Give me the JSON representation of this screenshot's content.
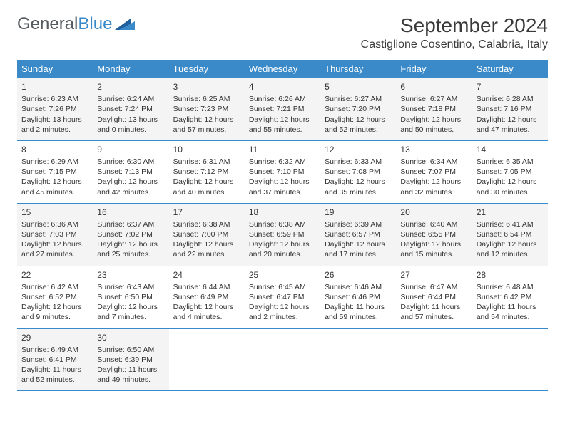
{
  "logo": {
    "word1": "General",
    "word2": "Blue"
  },
  "title": "September 2024",
  "location": "Castiglione Cosentino, Calabria, Italy",
  "colors": {
    "header_bg": "#3a8ac9",
    "header_text": "#ffffff",
    "border": "#3a8ac9",
    "shade_bg": "#f4f4f4",
    "body_text": "#333333",
    "title_text": "#3a3a3a",
    "logo_gray": "#555a60",
    "logo_blue": "#3a8ac9"
  },
  "fonts": {
    "title_size": 28,
    "location_size": 16,
    "header_size": 13,
    "cell_size": 10.5,
    "daynum_size": 12,
    "logo_size": 24
  },
  "day_names": [
    "Sunday",
    "Monday",
    "Tuesday",
    "Wednesday",
    "Thursday",
    "Friday",
    "Saturday"
  ],
  "weeks": [
    [
      {
        "n": "1",
        "sr": "Sunrise: 6:23 AM",
        "ss": "Sunset: 7:26 PM",
        "dl": "Daylight: 13 hours and 2 minutes.",
        "shade": true
      },
      {
        "n": "2",
        "sr": "Sunrise: 6:24 AM",
        "ss": "Sunset: 7:24 PM",
        "dl": "Daylight: 13 hours and 0 minutes.",
        "shade": true
      },
      {
        "n": "3",
        "sr": "Sunrise: 6:25 AM",
        "ss": "Sunset: 7:23 PM",
        "dl": "Daylight: 12 hours and 57 minutes.",
        "shade": true
      },
      {
        "n": "4",
        "sr": "Sunrise: 6:26 AM",
        "ss": "Sunset: 7:21 PM",
        "dl": "Daylight: 12 hours and 55 minutes.",
        "shade": true
      },
      {
        "n": "5",
        "sr": "Sunrise: 6:27 AM",
        "ss": "Sunset: 7:20 PM",
        "dl": "Daylight: 12 hours and 52 minutes.",
        "shade": true
      },
      {
        "n": "6",
        "sr": "Sunrise: 6:27 AM",
        "ss": "Sunset: 7:18 PM",
        "dl": "Daylight: 12 hours and 50 minutes.",
        "shade": true
      },
      {
        "n": "7",
        "sr": "Sunrise: 6:28 AM",
        "ss": "Sunset: 7:16 PM",
        "dl": "Daylight: 12 hours and 47 minutes.",
        "shade": true
      }
    ],
    [
      {
        "n": "8",
        "sr": "Sunrise: 6:29 AM",
        "ss": "Sunset: 7:15 PM",
        "dl": "Daylight: 12 hours and 45 minutes.",
        "shade": false
      },
      {
        "n": "9",
        "sr": "Sunrise: 6:30 AM",
        "ss": "Sunset: 7:13 PM",
        "dl": "Daylight: 12 hours and 42 minutes.",
        "shade": false
      },
      {
        "n": "10",
        "sr": "Sunrise: 6:31 AM",
        "ss": "Sunset: 7:12 PM",
        "dl": "Daylight: 12 hours and 40 minutes.",
        "shade": false
      },
      {
        "n": "11",
        "sr": "Sunrise: 6:32 AM",
        "ss": "Sunset: 7:10 PM",
        "dl": "Daylight: 12 hours and 37 minutes.",
        "shade": false
      },
      {
        "n": "12",
        "sr": "Sunrise: 6:33 AM",
        "ss": "Sunset: 7:08 PM",
        "dl": "Daylight: 12 hours and 35 minutes.",
        "shade": false
      },
      {
        "n": "13",
        "sr": "Sunrise: 6:34 AM",
        "ss": "Sunset: 7:07 PM",
        "dl": "Daylight: 12 hours and 32 minutes.",
        "shade": false
      },
      {
        "n": "14",
        "sr": "Sunrise: 6:35 AM",
        "ss": "Sunset: 7:05 PM",
        "dl": "Daylight: 12 hours and 30 minutes.",
        "shade": false
      }
    ],
    [
      {
        "n": "15",
        "sr": "Sunrise: 6:36 AM",
        "ss": "Sunset: 7:03 PM",
        "dl": "Daylight: 12 hours and 27 minutes.",
        "shade": true
      },
      {
        "n": "16",
        "sr": "Sunrise: 6:37 AM",
        "ss": "Sunset: 7:02 PM",
        "dl": "Daylight: 12 hours and 25 minutes.",
        "shade": true
      },
      {
        "n": "17",
        "sr": "Sunrise: 6:38 AM",
        "ss": "Sunset: 7:00 PM",
        "dl": "Daylight: 12 hours and 22 minutes.",
        "shade": true
      },
      {
        "n": "18",
        "sr": "Sunrise: 6:38 AM",
        "ss": "Sunset: 6:59 PM",
        "dl": "Daylight: 12 hours and 20 minutes.",
        "shade": true
      },
      {
        "n": "19",
        "sr": "Sunrise: 6:39 AM",
        "ss": "Sunset: 6:57 PM",
        "dl": "Daylight: 12 hours and 17 minutes.",
        "shade": true
      },
      {
        "n": "20",
        "sr": "Sunrise: 6:40 AM",
        "ss": "Sunset: 6:55 PM",
        "dl": "Daylight: 12 hours and 15 minutes.",
        "shade": true
      },
      {
        "n": "21",
        "sr": "Sunrise: 6:41 AM",
        "ss": "Sunset: 6:54 PM",
        "dl": "Daylight: 12 hours and 12 minutes.",
        "shade": true
      }
    ],
    [
      {
        "n": "22",
        "sr": "Sunrise: 6:42 AM",
        "ss": "Sunset: 6:52 PM",
        "dl": "Daylight: 12 hours and 9 minutes.",
        "shade": false
      },
      {
        "n": "23",
        "sr": "Sunrise: 6:43 AM",
        "ss": "Sunset: 6:50 PM",
        "dl": "Daylight: 12 hours and 7 minutes.",
        "shade": false
      },
      {
        "n": "24",
        "sr": "Sunrise: 6:44 AM",
        "ss": "Sunset: 6:49 PM",
        "dl": "Daylight: 12 hours and 4 minutes.",
        "shade": false
      },
      {
        "n": "25",
        "sr": "Sunrise: 6:45 AM",
        "ss": "Sunset: 6:47 PM",
        "dl": "Daylight: 12 hours and 2 minutes.",
        "shade": false
      },
      {
        "n": "26",
        "sr": "Sunrise: 6:46 AM",
        "ss": "Sunset: 6:46 PM",
        "dl": "Daylight: 11 hours and 59 minutes.",
        "shade": false
      },
      {
        "n": "27",
        "sr": "Sunrise: 6:47 AM",
        "ss": "Sunset: 6:44 PM",
        "dl": "Daylight: 11 hours and 57 minutes.",
        "shade": false
      },
      {
        "n": "28",
        "sr": "Sunrise: 6:48 AM",
        "ss": "Sunset: 6:42 PM",
        "dl": "Daylight: 11 hours and 54 minutes.",
        "shade": false
      }
    ],
    [
      {
        "n": "29",
        "sr": "Sunrise: 6:49 AM",
        "ss": "Sunset: 6:41 PM",
        "dl": "Daylight: 11 hours and 52 minutes.",
        "shade": true
      },
      {
        "n": "30",
        "sr": "Sunrise: 6:50 AM",
        "ss": "Sunset: 6:39 PM",
        "dl": "Daylight: 11 hours and 49 minutes.",
        "shade": true
      },
      null,
      null,
      null,
      null,
      null
    ]
  ]
}
